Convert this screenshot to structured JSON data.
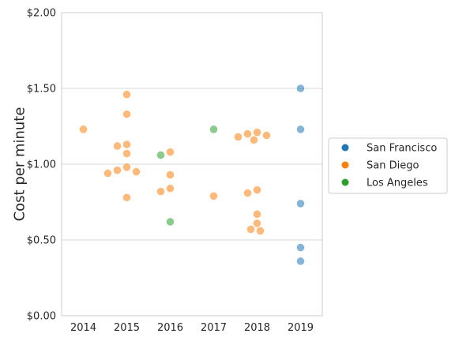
{
  "chart_data": {
    "type": "scatter",
    "title": "",
    "xlabel": "",
    "ylabel": "Cost per minute",
    "categories": [
      "2014",
      "2015",
      "2016",
      "2017",
      "2018",
      "2019"
    ],
    "yticks": [
      0,
      0.5,
      1.0,
      1.5,
      2.0
    ],
    "ytick_labels": [
      "$0.00",
      "$0.50",
      "$1.00",
      "$1.50",
      "$2.00"
    ],
    "ylim": [
      0,
      2
    ],
    "grid": "horizontal",
    "legend_position": "right",
    "series": [
      {
        "name": "San Francisco",
        "color": "#1f77b4",
        "points": [
          {
            "x": "2019",
            "y": 1.5
          },
          {
            "x": "2019",
            "y": 1.23
          },
          {
            "x": "2019",
            "y": 0.74
          },
          {
            "x": "2019",
            "y": 0.45
          },
          {
            "x": "2019",
            "y": 0.36
          }
        ]
      },
      {
        "name": "San Diego",
        "color": "#ff7f0e",
        "points": [
          {
            "x": "2014",
            "y": 1.23
          },
          {
            "x": "2015",
            "y": 1.46
          },
          {
            "x": "2015",
            "y": 1.33
          },
          {
            "x": "2015",
            "y": 1.13
          },
          {
            "x": "2015",
            "y": 1.12
          },
          {
            "x": "2015",
            "y": 1.07
          },
          {
            "x": "2015",
            "y": 0.98
          },
          {
            "x": "2015",
            "y": 0.96
          },
          {
            "x": "2015",
            "y": 0.95
          },
          {
            "x": "2015",
            "y": 0.94
          },
          {
            "x": "2015",
            "y": 0.78
          },
          {
            "x": "2016",
            "y": 1.08
          },
          {
            "x": "2016",
            "y": 0.93
          },
          {
            "x": "2016",
            "y": 0.84
          },
          {
            "x": "2016",
            "y": 0.82
          },
          {
            "x": "2017",
            "y": 0.79
          },
          {
            "x": "2018",
            "y": 1.21
          },
          {
            "x": "2018",
            "y": 1.2
          },
          {
            "x": "2018",
            "y": 1.19
          },
          {
            "x": "2018",
            "y": 1.18
          },
          {
            "x": "2018",
            "y": 1.16
          },
          {
            "x": "2018",
            "y": 0.83
          },
          {
            "x": "2018",
            "y": 0.81
          },
          {
            "x": "2018",
            "y": 0.67
          },
          {
            "x": "2018",
            "y": 0.61
          },
          {
            "x": "2018",
            "y": 0.57
          },
          {
            "x": "2018",
            "y": 0.56
          }
        ]
      },
      {
        "name": "Los Angeles",
        "color": "#2ca02c",
        "points": [
          {
            "x": "2016",
            "y": 1.06
          },
          {
            "x": "2016",
            "y": 0.62
          },
          {
            "x": "2017",
            "y": 1.23
          }
        ]
      }
    ]
  }
}
